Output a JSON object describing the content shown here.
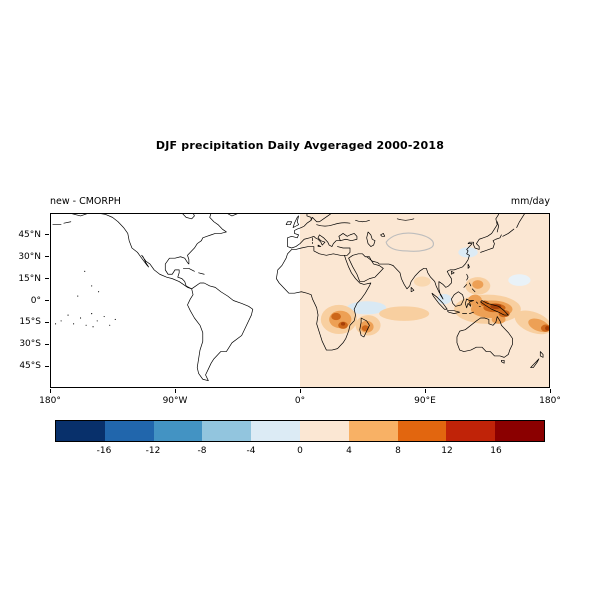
{
  "title": "DJF precipitation Daily Avgeraged 2000-2018",
  "panel": {
    "left_label": "new - CMORPH",
    "right_label": "mm/day"
  },
  "axes": {
    "lat_ticks": [
      {
        "label": "45°N",
        "value": 45
      },
      {
        "label": "30°N",
        "value": 30
      },
      {
        "label": "15°N",
        "value": 15
      },
      {
        "label": "0°",
        "value": 0
      },
      {
        "label": "15°S",
        "value": -15
      },
      {
        "label": "30°S",
        "value": -30
      },
      {
        "label": "45°S",
        "value": -45
      }
    ],
    "lon_ticks": [
      {
        "label": "180°",
        "value": -180
      },
      {
        "label": "90°W",
        "value": -90
      },
      {
        "label": "0°",
        "value": 0
      },
      {
        "label": "90°E",
        "value": 90
      },
      {
        "label": "180°",
        "value": 180
      }
    ]
  },
  "colorbar": {
    "tick_labels": [
      "-16",
      "-12",
      "-8",
      "-4",
      "0",
      "4",
      "8",
      "12",
      "16"
    ],
    "colors": [
      "#08306b",
      "#2166ac",
      "#4393c3",
      "#92c5de",
      "#dcebf5",
      "#fbe7d3",
      "#f8b165",
      "#e2660f",
      "#c02308",
      "#8b0000"
    ]
  },
  "chart_data": {
    "type": "heatmap",
    "title": "DJF precipitation Daily Avgeraged 2000-2018",
    "field": "new - CMORPH",
    "units": "mm/day",
    "season": "DJF",
    "period": "2000-2018",
    "projection": "equirectangular world map with coastlines",
    "lon_range": [
      -180,
      180
    ],
    "lat_range": [
      -60,
      60
    ],
    "lon_ticks_deg": [
      -180,
      -90,
      0,
      90,
      180
    ],
    "lat_ticks_deg": [
      45,
      30,
      15,
      0,
      -15,
      -30,
      -45
    ],
    "colorbar_ticks": [
      -16,
      -12,
      -8,
      -4,
      0,
      4,
      8,
      12,
      16
    ],
    "colorbar_colors": [
      "#08306b",
      "#2166ac",
      "#4393c3",
      "#92c5de",
      "#dcebf5",
      "#fbe7d3",
      "#f8b165",
      "#e2660f",
      "#c02308",
      "#8b0000"
    ],
    "data_coverage": "shaded difference field only east of 0° longitude (0°-180°E); region west of 0° is blank white with scattered near-zero black specks over the tropical Pacific",
    "background_anomaly_0_to_180E_mm_day": 1,
    "anomaly_regions": [
      {
        "region": "central/southern Africa",
        "lon": [
          18,
          38
        ],
        "lat": [
          -20,
          -4
        ],
        "value_mm_day": 6,
        "peak_mm_day": 12
      },
      {
        "region": "Madagascar / SW Indian Ocean",
        "lon": [
          42,
          55
        ],
        "lat": [
          -24,
          -10
        ],
        "value_mm_day": 6,
        "peak_mm_day": 10
      },
      {
        "region": "tropical south Indian Ocean band",
        "lon": [
          55,
          95
        ],
        "lat": [
          -14,
          -4
        ],
        "value_mm_day": 3
      },
      {
        "region": "Maritime Continent / New Guinea",
        "lon": [
          110,
          158
        ],
        "lat": [
          -15,
          3
        ],
        "value_mm_day": 8,
        "peak_mm_day": 16
      },
      {
        "region": "Philippines / western North Pacific",
        "lon": [
          118,
          138
        ],
        "lat": [
          4,
          16
        ],
        "value_mm_day": 5
      },
      {
        "region": "South Pacific Convergence Zone",
        "lon": [
          152,
          180
        ],
        "lat": [
          -25,
          -8
        ],
        "value_mm_day": 6,
        "peak_mm_day": 12
      },
      {
        "region": "Bay of Bengal",
        "lon": [
          82,
          95
        ],
        "lat": [
          9,
          17
        ],
        "value_mm_day": 2
      },
      {
        "region": "equatorial western Indian Ocean",
        "lon": [
          34,
          62
        ],
        "lat": [
          -10,
          1
        ],
        "value_mm_day": -2
      },
      {
        "region": "East China Sea",
        "lon": [
          114,
          129
        ],
        "lat": [
          29,
          37
        ],
        "value_mm_day": -2
      },
      {
        "region": "gray contour loop over central Asia",
        "lon": [
          60,
          100
        ],
        "lat": [
          32,
          46
        ],
        "value_mm_day": 0
      }
    ],
    "grid": false,
    "legend_position": "horizontal colorbar below map"
  }
}
